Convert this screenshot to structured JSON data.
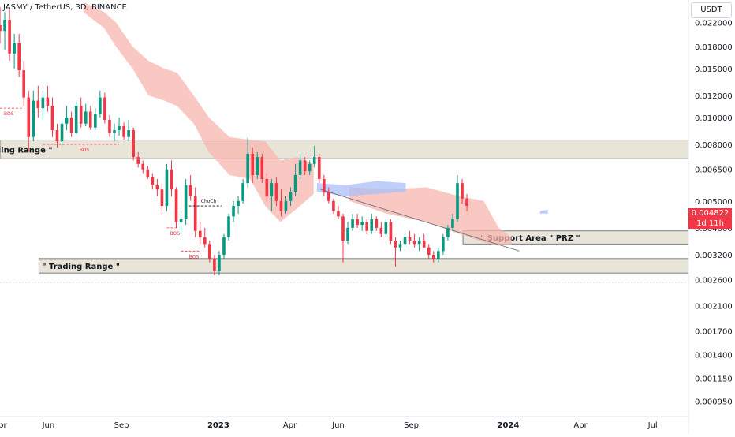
{
  "header": {
    "symbol_title": "JASMY / TetherUS, 3D, BINANCE",
    "currency_button": "USDT"
  },
  "price_tag": {
    "price": "0.004822",
    "countdown": "1d 11h"
  },
  "chart_data": {
    "type": "candlestick",
    "title": "JASMY / TetherUS, 3D, BINANCE",
    "y_scale": "log",
    "ylim": [
      0.00087,
      0.0265
    ],
    "y_ticks": [
      "0.022000",
      "0.018000",
      "0.015000",
      "0.012000",
      "0.010000",
      "0.008000",
      "0.006500",
      "0.005000",
      "0.004000",
      "0.003200",
      "0.002600",
      "0.002100",
      "0.001700",
      "0.001400",
      "0.001150",
      "0.000950"
    ],
    "x_ticks": [
      "Apr",
      "Jun",
      "Sep",
      "2023",
      "Apr",
      "Jun",
      "Sep",
      "2024",
      "Apr",
      "Jul"
    ],
    "x_range": [
      "2022-04-01",
      "2024-08-15"
    ],
    "candles": [
      [
        "2022-04-01",
        0.0215,
        0.025,
        0.0185,
        0.0205
      ],
      [
        "2022-04-07",
        0.0205,
        0.024,
        0.0175,
        0.0225
      ],
      [
        "2022-04-13",
        0.0225,
        0.0245,
        0.016,
        0.017
      ],
      [
        "2022-04-19",
        0.017,
        0.02,
        0.015,
        0.0185
      ],
      [
        "2022-04-25",
        0.0185,
        0.02,
        0.014,
        0.0148
      ],
      [
        "2022-05-01",
        0.0148,
        0.016,
        0.011,
        0.0118
      ],
      [
        "2022-05-07",
        0.0118,
        0.0125,
        0.0075,
        0.0085
      ],
      [
        "2022-05-13",
        0.0085,
        0.0125,
        0.0082,
        0.0115
      ],
      [
        "2022-05-19",
        0.0115,
        0.013,
        0.01,
        0.0108
      ],
      [
        "2022-05-25",
        0.0108,
        0.0125,
        0.0098,
        0.0118
      ],
      [
        "2022-05-31",
        0.0118,
        0.013,
        0.0105,
        0.011
      ],
      [
        "2022-06-06",
        0.011,
        0.0118,
        0.0085,
        0.009
      ],
      [
        "2022-06-12",
        0.009,
        0.0095,
        0.0078,
        0.0082
      ],
      [
        "2022-06-18",
        0.0082,
        0.0098,
        0.008,
        0.0095
      ],
      [
        "2022-06-24",
        0.0095,
        0.011,
        0.009,
        0.01
      ],
      [
        "2022-06-30",
        0.01,
        0.0105,
        0.0085,
        0.0088
      ],
      [
        "2022-07-06",
        0.0088,
        0.0115,
        0.0087,
        0.011
      ],
      [
        "2022-07-12",
        0.011,
        0.0118,
        0.0092,
        0.0095
      ],
      [
        "2022-07-18",
        0.0095,
        0.0112,
        0.0093,
        0.0105
      ],
      [
        "2022-07-24",
        0.0105,
        0.011,
        0.009,
        0.0092
      ],
      [
        "2022-07-30",
        0.0092,
        0.0108,
        0.009,
        0.0103
      ],
      [
        "2022-08-05",
        0.0103,
        0.0125,
        0.01,
        0.0118
      ],
      [
        "2022-08-11",
        0.0118,
        0.0123,
        0.0095,
        0.0098
      ],
      [
        "2022-08-17",
        0.0098,
        0.0102,
        0.0085,
        0.0088
      ],
      [
        "2022-08-23",
        0.0088,
        0.0095,
        0.0082,
        0.009
      ],
      [
        "2022-08-29",
        0.009,
        0.01,
        0.0086,
        0.0093
      ],
      [
        "2022-09-04",
        0.0093,
        0.0096,
        0.0083,
        0.0085
      ],
      [
        "2022-09-10",
        0.0085,
        0.0098,
        0.0082,
        0.009
      ],
      [
        "2022-09-16",
        0.009,
        0.0092,
        0.007,
        0.0072
      ],
      [
        "2022-09-22",
        0.0072,
        0.0075,
        0.0066,
        0.0068
      ],
      [
        "2022-09-28",
        0.0068,
        0.007,
        0.0063,
        0.0065
      ],
      [
        "2022-10-04",
        0.0065,
        0.0067,
        0.006,
        0.0061
      ],
      [
        "2022-10-10",
        0.0061,
        0.0063,
        0.0055,
        0.0057
      ],
      [
        "2022-10-16",
        0.0057,
        0.006,
        0.0052,
        0.0055
      ],
      [
        "2022-10-22",
        0.0055,
        0.0058,
        0.0045,
        0.0048
      ],
      [
        "2022-10-28",
        0.0048,
        0.0068,
        0.0046,
        0.0065
      ],
      [
        "2022-11-03",
        0.0065,
        0.007,
        0.0052,
        0.0055
      ],
      [
        "2022-11-09",
        0.0055,
        0.0056,
        0.004,
        0.0042
      ],
      [
        "2022-11-15",
        0.0042,
        0.0046,
        0.0038,
        0.0043
      ],
      [
        "2022-11-21",
        0.0043,
        0.006,
        0.0041,
        0.0057
      ],
      [
        "2022-11-27",
        0.0057,
        0.0062,
        0.005,
        0.0052
      ],
      [
        "2022-12-03",
        0.0052,
        0.0056,
        0.0037,
        0.0039
      ],
      [
        "2022-12-09",
        0.0039,
        0.0042,
        0.0035,
        0.0037
      ],
      [
        "2022-12-15",
        0.0037,
        0.004,
        0.0034,
        0.0035
      ],
      [
        "2022-12-21",
        0.0035,
        0.0036,
        0.003,
        0.0031
      ],
      [
        "2022-12-27",
        0.0031,
        0.0032,
        0.0027,
        0.0028
      ],
      [
        "2023-01-02",
        0.0028,
        0.0033,
        0.0027,
        0.0032
      ],
      [
        "2023-01-08",
        0.0032,
        0.0038,
        0.0031,
        0.0037
      ],
      [
        "2023-01-14",
        0.0037,
        0.0045,
        0.0036,
        0.0044
      ],
      [
        "2023-01-20",
        0.0044,
        0.005,
        0.0042,
        0.0048
      ],
      [
        "2023-01-26",
        0.0048,
        0.0052,
        0.0045,
        0.005
      ],
      [
        "2023-02-01",
        0.005,
        0.006,
        0.0049,
        0.0058
      ],
      [
        "2023-02-07",
        0.0058,
        0.0085,
        0.0056,
        0.0074
      ],
      [
        "2023-02-13",
        0.0074,
        0.0078,
        0.0058,
        0.0062
      ],
      [
        "2023-02-19",
        0.0062,
        0.0075,
        0.006,
        0.0072
      ],
      [
        "2023-02-25",
        0.0072,
        0.0074,
        0.0058,
        0.006
      ],
      [
        "2023-03-03",
        0.006,
        0.0063,
        0.005,
        0.0052
      ],
      [
        "2023-03-09",
        0.0052,
        0.006,
        0.0046,
        0.0058
      ],
      [
        "2023-03-15",
        0.0058,
        0.0061,
        0.0048,
        0.005
      ],
      [
        "2023-03-21",
        0.005,
        0.0055,
        0.0044,
        0.0046
      ],
      [
        "2023-03-27",
        0.0046,
        0.0052,
        0.0045,
        0.005
      ],
      [
        "2023-04-02",
        0.005,
        0.0056,
        0.0048,
        0.0054
      ],
      [
        "2023-04-08",
        0.0054,
        0.0068,
        0.0052,
        0.0062
      ],
      [
        "2023-04-14",
        0.0062,
        0.0074,
        0.006,
        0.007
      ],
      [
        "2023-04-20",
        0.007,
        0.0072,
        0.0062,
        0.0064
      ],
      [
        "2023-04-26",
        0.0064,
        0.007,
        0.0062,
        0.0068
      ],
      [
        "2023-05-02",
        0.0068,
        0.0079,
        0.0066,
        0.0072
      ],
      [
        "2023-05-08",
        0.0072,
        0.0074,
        0.0058,
        0.006
      ],
      [
        "2023-05-14",
        0.006,
        0.0062,
        0.0052,
        0.0054
      ],
      [
        "2023-05-20",
        0.0054,
        0.0056,
        0.0049,
        0.005
      ],
      [
        "2023-05-26",
        0.005,
        0.0051,
        0.0045,
        0.0046
      ],
      [
        "2023-06-01",
        0.0046,
        0.0048,
        0.0043,
        0.0044
      ],
      [
        "2023-06-07",
        0.0044,
        0.0045,
        0.003,
        0.0036
      ],
      [
        "2023-06-13",
        0.0036,
        0.0042,
        0.0035,
        0.004
      ],
      [
        "2023-06-19",
        0.004,
        0.0045,
        0.0039,
        0.0043
      ],
      [
        "2023-06-25",
        0.0043,
        0.0045,
        0.004,
        0.0041
      ],
      [
        "2023-07-01",
        0.0041,
        0.0044,
        0.0039,
        0.0042
      ],
      [
        "2023-07-07",
        0.0042,
        0.0043,
        0.0038,
        0.0039
      ],
      [
        "2023-07-13",
        0.0039,
        0.0045,
        0.0038,
        0.0043
      ],
      [
        "2023-07-19",
        0.0043,
        0.0044,
        0.0039,
        0.004
      ],
      [
        "2023-07-25",
        0.004,
        0.0042,
        0.0037,
        0.0038
      ],
      [
        "2023-07-31",
        0.0038,
        0.0043,
        0.0037,
        0.0042
      ],
      [
        "2023-08-06",
        0.0042,
        0.0043,
        0.0035,
        0.0036
      ],
      [
        "2023-08-12",
        0.0036,
        0.0037,
        0.0029,
        0.0034
      ],
      [
        "2023-08-18",
        0.0034,
        0.0036,
        0.0033,
        0.0035
      ],
      [
        "2023-08-24",
        0.0035,
        0.0038,
        0.0034,
        0.0037
      ],
      [
        "2023-08-30",
        0.0037,
        0.0039,
        0.0035,
        0.0036
      ],
      [
        "2023-09-05",
        0.0036,
        0.0038,
        0.0034,
        0.0035
      ],
      [
        "2023-09-11",
        0.0035,
        0.0037,
        0.0033,
        0.0036
      ],
      [
        "2023-09-17",
        0.0036,
        0.0038,
        0.0034,
        0.0034
      ],
      [
        "2023-09-23",
        0.0034,
        0.0035,
        0.0031,
        0.0032
      ],
      [
        "2023-09-29",
        0.0032,
        0.0033,
        0.003,
        0.0031
      ],
      [
        "2023-10-05",
        0.0031,
        0.0034,
        0.003,
        0.0033
      ],
      [
        "2023-10-11",
        0.0033,
        0.0038,
        0.0032,
        0.0037
      ],
      [
        "2023-10-17",
        0.0037,
        0.0041,
        0.0036,
        0.004
      ],
      [
        "2023-10-23",
        0.004,
        0.0045,
        0.0039,
        0.0043
      ],
      [
        "2023-10-29",
        0.0043,
        0.0062,
        0.0042,
        0.0058
      ],
      [
        "2023-11-04",
        0.0058,
        0.006,
        0.0049,
        0.0051
      ],
      [
        "2023-11-10",
        0.0051,
        0.0053,
        0.0046,
        0.0048
      ]
    ],
    "annotations": [
      "\" Trading Range \"",
      "\" Trading Range \"",
      "\" Support Area \"  PRZ \"",
      "BOS",
      "BOS",
      "BOS",
      "BOS",
      "ChoCh"
    ],
    "zones": [
      {
        "label": "\" Trading Range \"",
        "from_price": 0.0071,
        "to_price": 0.0083
      },
      {
        "label": "\" Trading Range \"",
        "from_price": 0.00275,
        "to_price": 0.0031
      },
      {
        "label": "\" Support Area \"  PRZ \"",
        "from_price": 0.0035,
        "to_price": 0.0039
      }
    ],
    "colors": {
      "up": "#089981",
      "down": "#f23645",
      "cloud": "#f8b5ad",
      "cloud_blue": "#a9bff7",
      "zone": "#e8e5d8",
      "price_tag": "#f23645"
    },
    "grid": false
  }
}
